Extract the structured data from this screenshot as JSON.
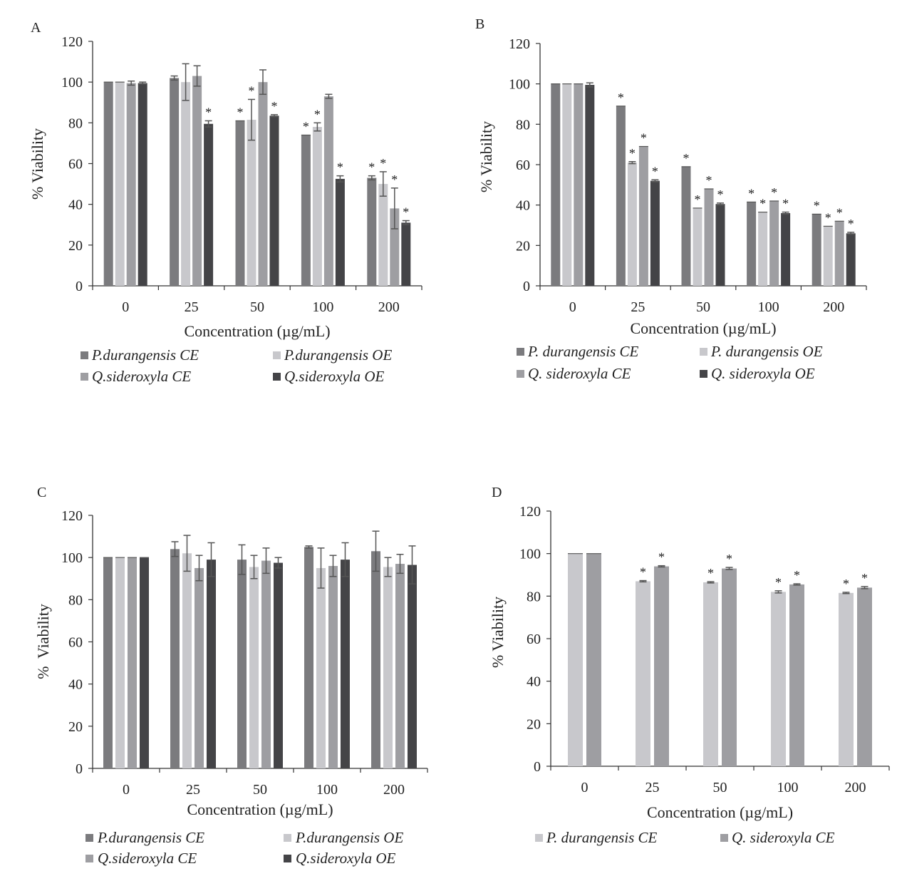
{
  "colors": {
    "p_ce": "#7b7b7e",
    "p_oe": "#c8c8cc",
    "q_ce": "#9e9ea2",
    "q_oe": "#444447",
    "axis": "#333333",
    "err": "#555555"
  },
  "chart_data": [
    {
      "panel": "A",
      "type": "bar",
      "title": "",
      "categories": [
        "0",
        "25",
        "50",
        "100",
        "200"
      ],
      "xlabel": "Concentration (µg/mL)",
      "ylabel": "% Viability",
      "ylim": [
        0,
        120
      ],
      "yticks": [
        "0",
        "20",
        "40",
        "60",
        "80",
        "100",
        "120"
      ],
      "series": [
        {
          "name": "P.durangensis CE",
          "color_key": "p_ce",
          "values": [
            100,
            102,
            81,
            74,
            53
          ],
          "errors": [
            0,
            1,
            0,
            0,
            1
          ],
          "sig": [
            false,
            false,
            true,
            true,
            true
          ]
        },
        {
          "name": "P.durangensis OE",
          "color_key": "p_oe",
          "values": [
            100,
            100,
            81.5,
            78,
            50
          ],
          "errors": [
            0,
            9,
            10,
            2,
            6
          ],
          "sig": [
            false,
            false,
            true,
            true,
            true
          ]
        },
        {
          "name": "Q.sideroxyla CE",
          "color_key": "q_ce",
          "values": [
            99.5,
            103,
            100,
            93,
            38
          ],
          "errors": [
            1,
            5,
            6,
            1,
            10
          ],
          "sig": [
            false,
            false,
            false,
            false,
            true
          ]
        },
        {
          "name": "Q.sideroxyla OE",
          "color_key": "q_oe",
          "values": [
            99.5,
            79.5,
            83.5,
            52.5,
            31
          ],
          "errors": [
            0.5,
            1.5,
            0.5,
            1.5,
            1
          ],
          "sig": [
            false,
            true,
            true,
            true,
            true
          ]
        }
      ]
    },
    {
      "panel": "B",
      "type": "bar",
      "title": "",
      "categories": [
        "0",
        "25",
        "50",
        "100",
        "200"
      ],
      "xlabel": "Concentration (µg/mL)",
      "ylabel": "% Viability",
      "ylim": [
        0,
        120
      ],
      "yticks": [
        "0",
        "20",
        "40",
        "60",
        "80",
        "100",
        "120"
      ],
      "series": [
        {
          "name": "P. durangensis CE",
          "color_key": "p_ce",
          "values": [
            100,
            89,
            59,
            41.5,
            35.5
          ],
          "errors": [
            0,
            0,
            0,
            0,
            0
          ],
          "sig": [
            false,
            true,
            true,
            true,
            true
          ]
        },
        {
          "name": "P. durangensis OE",
          "color_key": "p_oe",
          "values": [
            100,
            61,
            38.5,
            36.5,
            29.5
          ],
          "errors": [
            0,
            0.5,
            0,
            0,
            0
          ],
          "sig": [
            false,
            true,
            true,
            true,
            true
          ]
        },
        {
          "name": "Q. sideroxyla CE",
          "color_key": "q_ce",
          "values": [
            100,
            69,
            48,
            42,
            32
          ],
          "errors": [
            0,
            0,
            0,
            0,
            0
          ],
          "sig": [
            false,
            true,
            true,
            true,
            true
          ]
        },
        {
          "name": "Q. sideroxyla OE",
          "color_key": "q_oe",
          "values": [
            99.5,
            52,
            40.5,
            36,
            26
          ],
          "errors": [
            1,
            0.5,
            0.5,
            0.5,
            0.5
          ],
          "sig": [
            false,
            true,
            true,
            true,
            true
          ]
        }
      ]
    },
    {
      "panel": "C",
      "type": "bar",
      "title": "",
      "categories": [
        "0",
        "25",
        "50",
        "100",
        "200"
      ],
      "xlabel": "Concentration (µg/mL)",
      "ylabel": "%  Viability",
      "ylim": [
        0,
        120
      ],
      "yticks": [
        "0",
        "20",
        "40",
        "60",
        "80",
        "100",
        "120"
      ],
      "series": [
        {
          "name": "P.durangensis CE",
          "color_key": "p_ce",
          "values": [
            100,
            104,
            99,
            105,
            103
          ],
          "errors": [
            0,
            3.5,
            7,
            0.5,
            9.5
          ],
          "sig": [
            false,
            false,
            false,
            false,
            false
          ]
        },
        {
          "name": "P.durangensis OE",
          "color_key": "p_oe",
          "values": [
            100,
            102,
            95.5,
            95,
            95.5
          ],
          "errors": [
            0,
            8.5,
            5.5,
            9.5,
            4.5
          ],
          "sig": [
            false,
            false,
            false,
            false,
            false
          ]
        },
        {
          "name": "Q.sideroxyla CE",
          "color_key": "q_ce",
          "values": [
            100,
            95,
            98.5,
            96,
            97
          ],
          "errors": [
            0,
            6,
            6,
            5,
            4.5
          ],
          "sig": [
            false,
            false,
            false,
            false,
            false
          ]
        },
        {
          "name": "Q.sideroxyla OE",
          "color_key": "q_oe",
          "values": [
            100,
            99,
            97.5,
            99,
            96.5
          ],
          "errors": [
            0,
            8,
            2.5,
            8,
            9
          ],
          "sig": [
            false,
            false,
            false,
            false,
            false
          ]
        }
      ]
    },
    {
      "panel": "D",
      "type": "bar",
      "title": "",
      "categories": [
        "0",
        "25",
        "50",
        "100",
        "200"
      ],
      "xlabel": "Concentration (µg/mL)",
      "ylabel": "% Viability",
      "ylim": [
        0,
        120
      ],
      "yticks": [
        "0",
        "20",
        "40",
        "60",
        "80",
        "100",
        "120"
      ],
      "series": [
        {
          "name": "P. durangensis CE",
          "color_key": "p_oe",
          "values": [
            100,
            87,
            86.5,
            82,
            81.5
          ],
          "errors": [
            0,
            0.3,
            0.3,
            0.5,
            0.3
          ],
          "sig": [
            false,
            true,
            true,
            true,
            true
          ]
        },
        {
          "name": "Q. sideroxyla CE",
          "color_key": "q_ce",
          "values": [
            100,
            94,
            93,
            85.5,
            84
          ],
          "errors": [
            0,
            0.3,
            0.5,
            0.3,
            0.5
          ],
          "sig": [
            false,
            true,
            true,
            true,
            true
          ]
        }
      ]
    }
  ],
  "star_symbol": "*"
}
